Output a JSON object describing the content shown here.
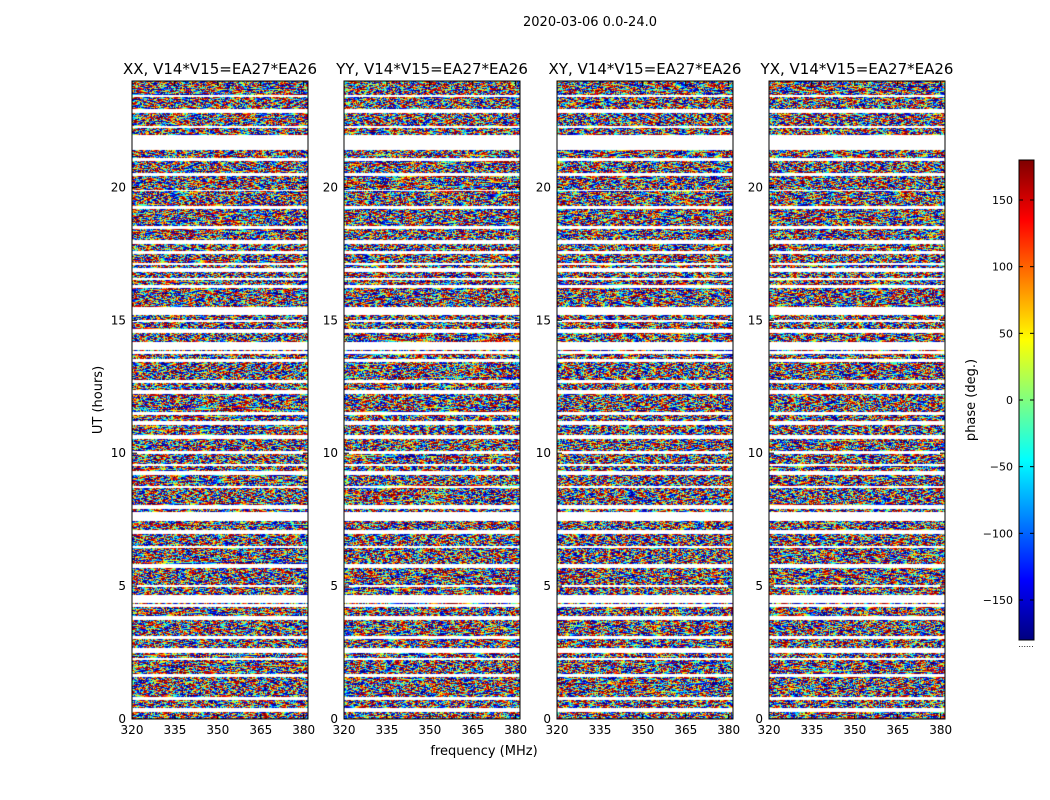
{
  "figure_title": "2020-03-06 0.0-24.0",
  "colorbar": {
    "label": "phase (deg.)",
    "range": [
      -180,
      180
    ],
    "ticks": [
      150,
      100,
      50,
      0,
      -50,
      -100,
      -150
    ],
    "tick_labels": [
      "150",
      "100",
      "50",
      "0",
      "−50",
      "−100",
      "−150"
    ],
    "colors": [
      "#00007f",
      "#0000ff",
      "#0080ff",
      "#00ffff",
      "#80ff80",
      "#ffff00",
      "#ff8000",
      "#ff0000",
      "#7f0000"
    ],
    "footnote": "......"
  },
  "chart_data": [
    {
      "type": "heatmap",
      "title": "XX, V14*V15=EA27*EA26",
      "xlabel": "",
      "ylabel": "UT (hours)",
      "xlim": [
        320,
        381.5
      ],
      "ylim": [
        0,
        24
      ],
      "xticks": [
        320,
        335,
        350,
        365,
        380
      ],
      "yticks": [
        0,
        5,
        10,
        15,
        20
      ],
      "zlabel": "phase (deg.)",
      "zlim": [
        -180,
        180
      ]
    },
    {
      "type": "heatmap",
      "title": "YY, V14*V15=EA27*EA26",
      "xlabel": "frequency (MHz)",
      "ylabel": "",
      "xlim": [
        320,
        381.5
      ],
      "ylim": [
        0,
        24
      ],
      "xticks": [
        320,
        335,
        350,
        365,
        380
      ],
      "yticks": [
        0,
        5,
        10,
        15,
        20
      ],
      "zlabel": "phase (deg.)",
      "zlim": [
        -180,
        180
      ]
    },
    {
      "type": "heatmap",
      "title": "XY, V14*V15=EA27*EA26",
      "xlabel": "",
      "ylabel": "",
      "xlim": [
        320,
        381.5
      ],
      "ylim": [
        0,
        24
      ],
      "xticks": [
        320,
        335,
        350,
        365,
        380
      ],
      "yticks": [
        0,
        5,
        10,
        15,
        20
      ],
      "zlabel": "phase (deg.)",
      "zlim": [
        -180,
        180
      ]
    },
    {
      "type": "heatmap",
      "title": "YX, V14*V15=EA27*EA26",
      "xlabel": "",
      "ylabel": "",
      "xlim": [
        320,
        381.5
      ],
      "ylim": [
        0,
        24
      ],
      "xticks": [
        320,
        335,
        350,
        365,
        380
      ],
      "yticks": [
        0,
        5,
        10,
        15,
        20
      ],
      "zlabel": "phase (deg.)",
      "zlim": [
        -180,
        180
      ]
    }
  ]
}
